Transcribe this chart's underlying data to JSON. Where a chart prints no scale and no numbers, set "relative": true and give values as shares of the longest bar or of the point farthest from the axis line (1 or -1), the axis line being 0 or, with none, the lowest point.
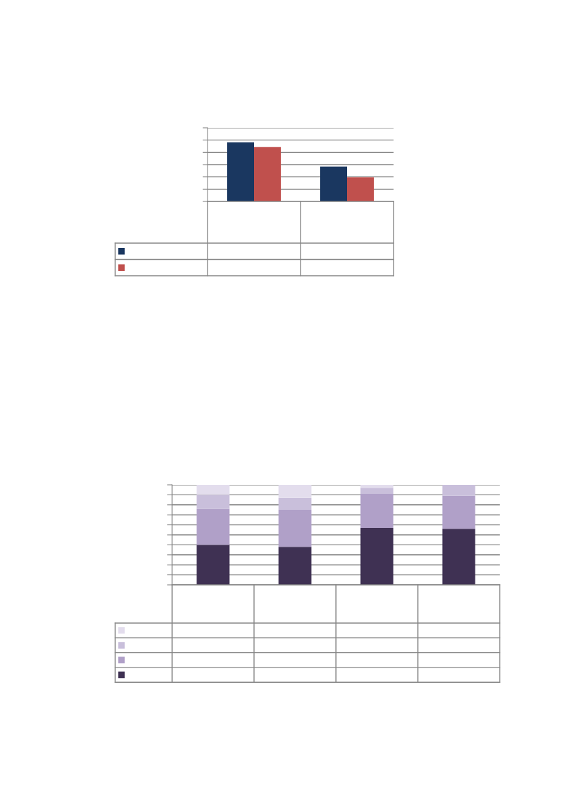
{
  "chart_data": [
    {
      "type": "bar",
      "relative": true,
      "grid": "y",
      "categories": [
        null,
        null
      ],
      "series": [
        {
          "color": "#1a3760",
          "values": [
            1,
            0.59
          ]
        },
        {
          "color": "#c0504d",
          "values": [
            0.92,
            0.41
          ]
        }
      ]
    },
    {
      "type": "bar",
      "relative": true,
      "stacked": true,
      "grid": "y",
      "categories": [
        null,
        null,
        null,
        null
      ],
      "series": [
        {
          "color": "#3f3153",
          "values": [
            0.4,
            0.38,
            0.57,
            0.56
          ]
        },
        {
          "color": "#b0a0c8",
          "values": [
            0.36,
            0.37,
            0.34,
            0.33
          ]
        },
        {
          "color": "#c9bfdb",
          "values": [
            0.14,
            0.12,
            0.06,
            0.11
          ]
        },
        {
          "color": "#e3dded",
          "values": [
            0.1,
            0.13,
            0.03,
            0
          ]
        }
      ]
    }
  ]
}
